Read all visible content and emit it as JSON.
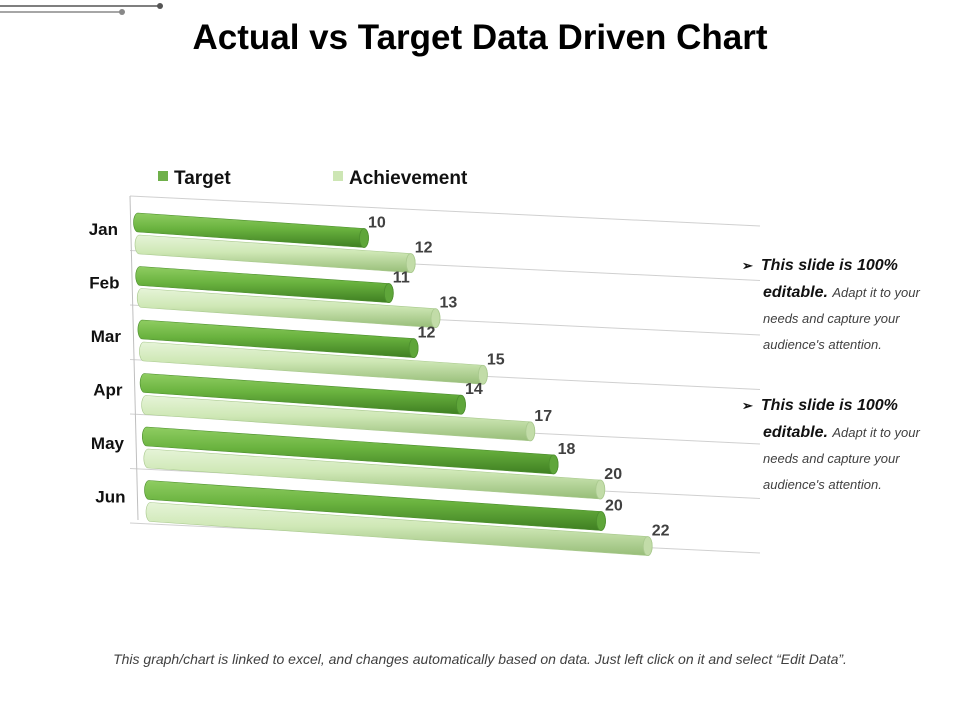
{
  "slide": {
    "title": "Actual vs Target Data Driven Chart",
    "footer": "This graph/chart is linked to excel, and changes automatically based on data. Just left click on it and select “Edit Data”."
  },
  "notes": [
    {
      "bold": "This slide is 100%",
      "bold2": "editable.",
      "text": "Adapt it to your needs and capture your audience's attention.",
      "icon": "arrowhead-bullet-icon"
    },
    {
      "bold": "This slide is 100%",
      "bold2": "editable.",
      "text": "Adapt it to your needs and capture your audience's attention.",
      "icon": "arrowhead-bullet-icon"
    }
  ],
  "chart_data": {
    "type": "bar",
    "orientation": "horizontal",
    "style": "3d-cylinder",
    "categories": [
      "Jan",
      "Feb",
      "Mar",
      "Apr",
      "May",
      "Jun"
    ],
    "series": [
      {
        "name": "Target",
        "values": [
          10,
          11,
          12,
          14,
          18,
          20
        ],
        "color": "#6fb04a"
      },
      {
        "name": "Achievement",
        "values": [
          12,
          13,
          15,
          17,
          20,
          22
        ],
        "color": "#cde6b4"
      }
    ],
    "legend_position": "top",
    "grid": true,
    "data_labels": true
  }
}
